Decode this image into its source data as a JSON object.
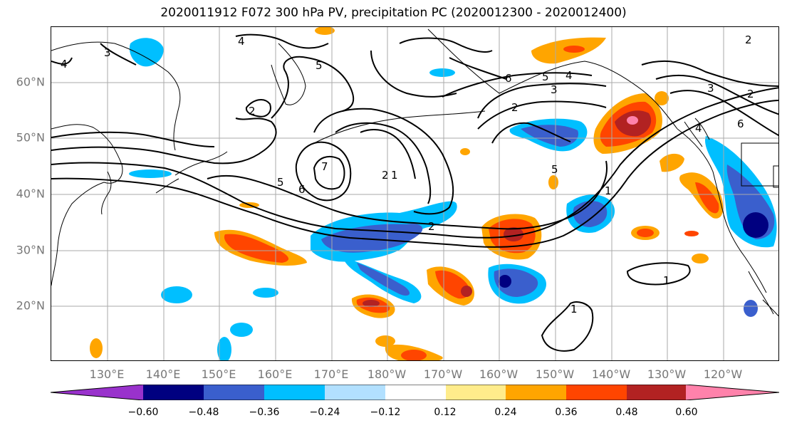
{
  "title": "2020011912 F072 300 hPa PV, precipitation PC (2020012300 - 2020012400)",
  "map": {
    "lat_labels": [
      "60°N",
      "50°N",
      "40°N",
      "30°N",
      "20°N"
    ],
    "lon_labels": [
      "130°E",
      "140°E",
      "150°E",
      "160°E",
      "170°E",
      "180°W",
      "170°W",
      "160°W",
      "150°W",
      "140°W",
      "130°W",
      "120°W"
    ],
    "contour_labels": [
      "4",
      "4",
      "3",
      "5",
      "6",
      "5",
      "4",
      "3",
      "2",
      "2",
      "2",
      "7",
      "5",
      "6",
      "5",
      "2",
      "1",
      "1",
      "2",
      "1",
      "1",
      "3",
      "2",
      "6",
      "4"
    ]
  },
  "colorbar": {
    "ticks": [
      "−0.60",
      "−0.48",
      "−0.36",
      "−0.24",
      "−0.12",
      "0.12",
      "0.24",
      "0.36",
      "0.48",
      "0.60"
    ],
    "colors": [
      "#9932cc",
      "#000080",
      "#3a5fcd",
      "#00bfff",
      "#b2e0ff",
      "#ffffff",
      "#ffec8b",
      "#ffa500",
      "#ff4500",
      "#b22222",
      "#ff82ab"
    ]
  }
}
